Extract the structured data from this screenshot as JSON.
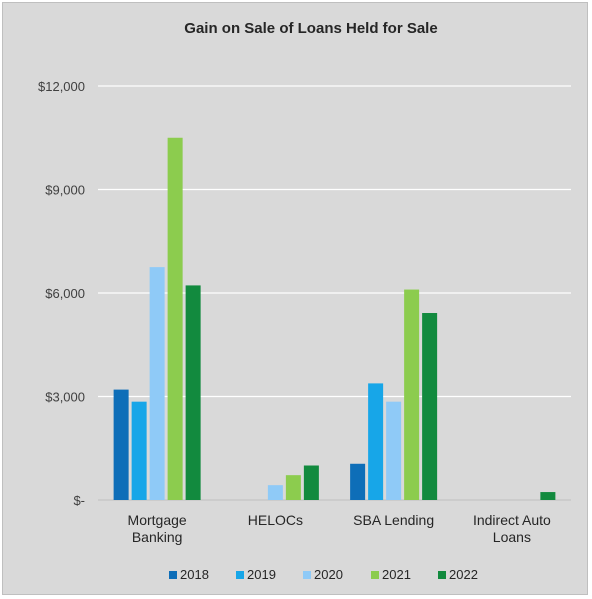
{
  "chart_data": {
    "type": "bar",
    "title": "Gain on Sale of Loans Held for Sale",
    "categories": [
      [
        "Mortgage",
        "Banking"
      ],
      [
        "HELOCs"
      ],
      [
        "SBA Lending"
      ],
      [
        "Indirect Auto",
        "Loans"
      ]
    ],
    "yticks": [
      "$-",
      "$3,000",
      "$6,000",
      "$9,000",
      "$12,000"
    ],
    "ylim": [
      0,
      12000
    ],
    "grid": true,
    "legend_position": "bottom",
    "series": [
      {
        "name": "2018",
        "color": "#0e6eb8",
        "values": [
          3200,
          0,
          1050,
          0
        ]
      },
      {
        "name": "2019",
        "color": "#17a6e8",
        "values": [
          2850,
          0,
          3380,
          0
        ]
      },
      {
        "name": "2020",
        "color": "#8fcaf7",
        "values": [
          6750,
          430,
          2850,
          0
        ]
      },
      {
        "name": "2021",
        "color": "#8ccc4e",
        "values": [
          10500,
          720,
          6100,
          0
        ]
      },
      {
        "name": "2022",
        "color": "#128a3e",
        "values": [
          6220,
          1000,
          5420,
          230
        ]
      }
    ]
  }
}
